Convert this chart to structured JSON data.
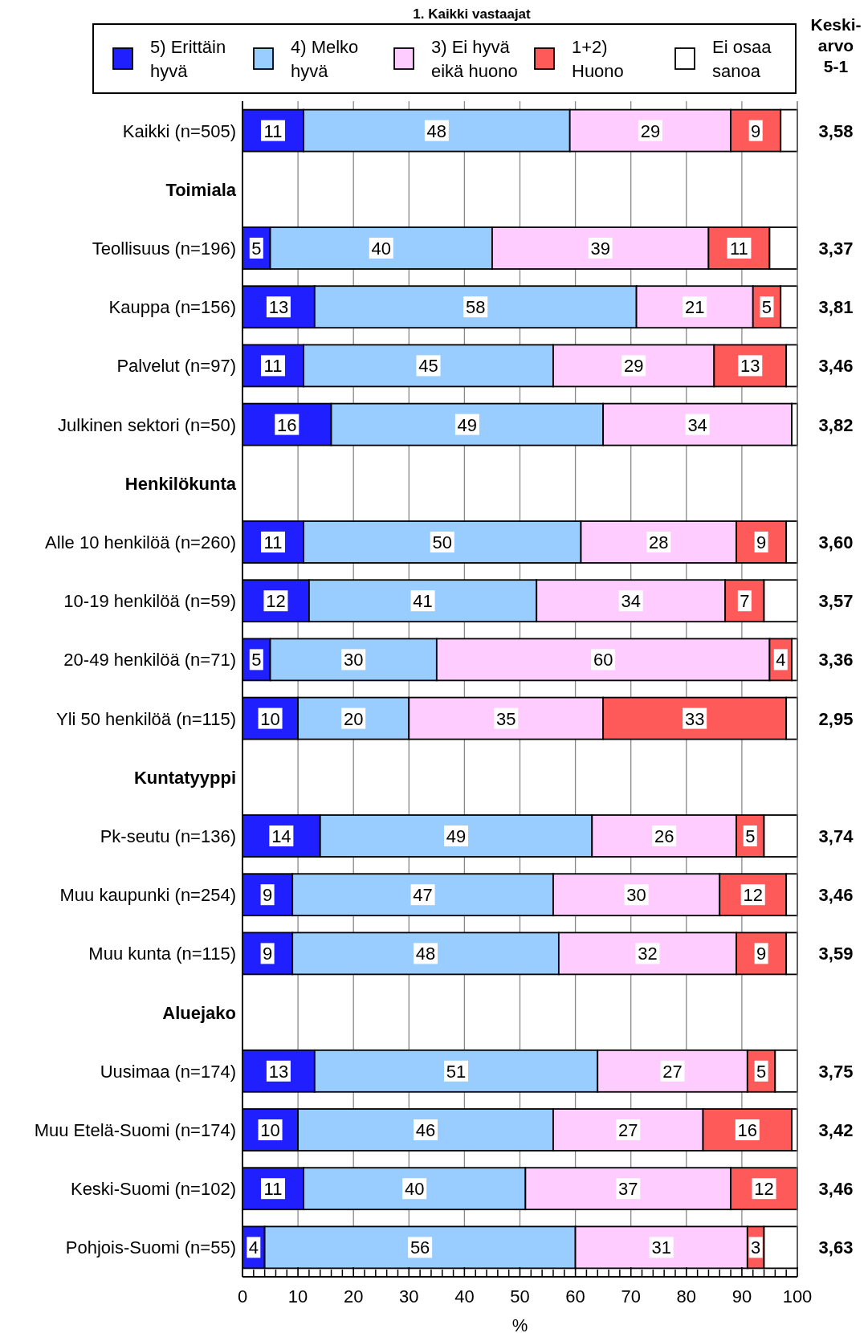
{
  "chart_data": {
    "type": "bar",
    "orientation": "horizontal",
    "stacked": true,
    "title": "1. Kaikki vastaajat",
    "xlabel": "%",
    "legend": "top",
    "grid": "x",
    "categories": [
      "Kaikki (n=505)",
      "Toimiala",
      "Teollisuus (n=196)",
      "Kauppa (n=156)",
      "Palvelut (n=97)",
      "Julkinen sektori (n=50)",
      "Henkilökunta",
      "Alle 10 henkilöä (n=260)",
      "10-19 henkilöä (n=59)",
      "20-49 henkilöä (n=71)",
      "Yli 50 henkilöä (n=115)",
      "Kuntatyyppi",
      "Pk-seutu (n=136)",
      "Muu kaupunki (n=254)",
      "Muu kunta (n=115)",
      "Aluejako",
      "Uusimaa (n=174)",
      "Muu Etelä-Suomi (n=174)",
      "Keski-Suomi (n=102)",
      "Pohjois-Suomi (n=55)"
    ],
    "xlim": [
      0,
      100
    ],
    "xticks": [
      0,
      {
        "value": 2,
        "label": null
      },
      {
        "value": 4,
        "label": null
      },
      {
        "value": 6,
        "label": null
      },
      {
        "value": 8,
        "label": null
      },
      10,
      {
        "value": 12,
        "label": null
      },
      {
        "value": 14,
        "label": null
      },
      {
        "value": 16,
        "label": null
      },
      {
        "value": 18,
        "label": null
      },
      20,
      {
        "value": 22,
        "label": null
      },
      {
        "value": 24,
        "label": null
      },
      {
        "value": 26,
        "label": null
      },
      {
        "value": 28,
        "label": null
      },
      30,
      {
        "value": 32,
        "label": null
      },
      {
        "value": 34,
        "label": null
      },
      {
        "value": 36,
        "label": null
      },
      {
        "value": 38,
        "label": null
      },
      40,
      {
        "value": 42,
        "label": null
      },
      {
        "value": 44,
        "label": null
      },
      {
        "value": 46,
        "label": null
      },
      {
        "value": 48,
        "label": null
      },
      50,
      {
        "value": 52,
        "label": null
      },
      {
        "value": 54,
        "label": null
      },
      {
        "value": 56,
        "label": null
      },
      {
        "value": 58,
        "label": null
      },
      60,
      {
        "value": 62,
        "label": null
      },
      {
        "value": 64,
        "label": null
      },
      {
        "value": 66,
        "label": null
      },
      {
        "value": 68,
        "label": null
      },
      70,
      {
        "value": 72,
        "label": null
      },
      {
        "value": 74,
        "label": null
      },
      {
        "value": 76,
        "label": null
      },
      {
        "value": 78,
        "label": null
      },
      80,
      {
        "value": 82,
        "label": null
      },
      {
        "value": 84,
        "label": null
      },
      {
        "value": 86,
        "label": null
      },
      {
        "value": 88,
        "label": null
      },
      90,
      {
        "value": 92,
        "label": null
      },
      {
        "value": 94,
        "label": null
      },
      {
        "value": 96,
        "label": null
      },
      {
        "value": 98,
        "label": null
      },
      100
    ],
    "series": [
      {
        "name": "5) Erittäin hyvä",
        "color": "#1f1fff",
        "values": [
          11,
          null,
          5,
          13,
          11,
          16,
          null,
          11,
          12,
          5,
          10,
          null,
          14,
          9,
          9,
          null,
          13,
          10,
          11,
          4
        ],
        "value_labels": [
          "11",
          null,
          "5",
          "13",
          "11",
          "16",
          null,
          "11",
          "12",
          "5",
          "10",
          null,
          "14",
          "9",
          "9",
          null,
          "13",
          "10",
          "11",
          "4"
        ]
      },
      {
        "name": "4) Melko hyvä",
        "color": "#99ccff",
        "values": [
          48,
          null,
          40,
          58,
          45,
          49,
          null,
          50,
          41,
          30,
          20,
          null,
          49,
          47,
          48,
          null,
          51,
          46,
          40,
          56
        ],
        "value_labels": [
          "48",
          null,
          "40",
          "58",
          "45",
          "49",
          null,
          "50",
          "41",
          "30",
          "20",
          null,
          "49",
          "47",
          "48",
          null,
          "51",
          "46",
          "40",
          "56"
        ]
      },
      {
        "name": "3) Ei hyvä eikä huono",
        "color": "#ffccff",
        "values": [
          29,
          null,
          39,
          21,
          29,
          34,
          null,
          28,
          34,
          60,
          35,
          null,
          26,
          30,
          32,
          null,
          27,
          27,
          37,
          31
        ],
        "value_labels": [
          "29",
          null,
          "39",
          "21",
          "29",
          "34",
          null,
          "28",
          "34",
          "60",
          "35",
          null,
          "26",
          "30",
          "32",
          null,
          "27",
          "27",
          "37",
          "31"
        ]
      },
      {
        "name": "1+2) Huono",
        "color": "#ff5a5a",
        "values": [
          9,
          null,
          11,
          5,
          13,
          null,
          null,
          9,
          7,
          4,
          33,
          null,
          5,
          12,
          9,
          null,
          5,
          16,
          12,
          3
        ],
        "value_labels": [
          "9",
          null,
          "11",
          "5",
          "13",
          null,
          null,
          "9",
          "7",
          "4",
          "33",
          null,
          "5",
          "12",
          "9",
          null,
          "5",
          "16",
          "12",
          "3"
        ]
      },
      {
        "name": "Ei osaa sanoa",
        "color": "#ffffff",
        "values": [
          3,
          null,
          5,
          3,
          2,
          1,
          null,
          2,
          6,
          1,
          2,
          null,
          6,
          2,
          2,
          null,
          4,
          1,
          null,
          6
        ]
      }
    ],
    "annotations": [
      "Keski-arvo 5-1",
      "3,58",
      "3,37",
      "3,81",
      "3,46",
      "3,82",
      "3,60",
      "3,57",
      "3,36",
      "2,95",
      "3,74",
      "3,46",
      "3,59",
      "3,75",
      "3,42",
      "3,46",
      "3,63"
    ]
  }
}
